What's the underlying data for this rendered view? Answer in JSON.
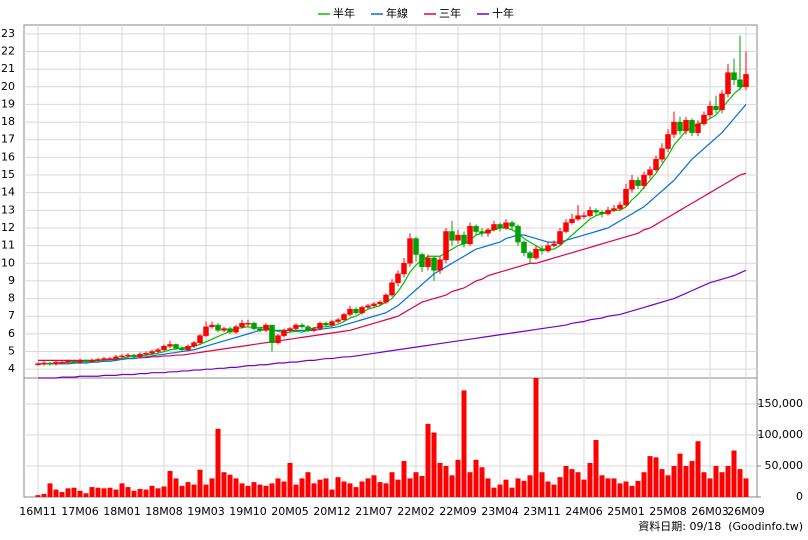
{
  "chart_data": {
    "type": "candlestick",
    "categories": [
      "16M11",
      null,
      null,
      null,
      null,
      null,
      null,
      "17M06",
      null,
      null,
      null,
      null,
      null,
      null,
      "18M01",
      null,
      null,
      null,
      null,
      null,
      null,
      "18M08",
      null,
      null,
      null,
      null,
      null,
      null,
      "19M03",
      null,
      null,
      null,
      null,
      null,
      null,
      "19M10",
      null,
      null,
      null,
      null,
      null,
      null,
      "20M05",
      null,
      null,
      null,
      null,
      null,
      null,
      "20M12",
      null,
      null,
      null,
      null,
      null,
      null,
      "21M07",
      null,
      null,
      null,
      null,
      null,
      null,
      "22M02",
      null,
      null,
      null,
      null,
      null,
      null,
      "22M09",
      null,
      null,
      null,
      null,
      null,
      null,
      "23M04",
      null,
      null,
      null,
      null,
      null,
      null,
      "23M11",
      null,
      null,
      null,
      null,
      null,
      null,
      "24M06",
      null,
      null,
      null,
      null,
      null,
      null,
      "25M01",
      null,
      null,
      null,
      null,
      null,
      null,
      "25M08",
      null,
      null,
      null,
      null,
      null,
      null,
      "26M03",
      null,
      null,
      null,
      null,
      null,
      "26M09"
    ],
    "open": [
      4.25,
      4.3,
      4.35,
      4.3,
      4.4,
      4.4,
      4.45,
      4.4,
      4.5,
      4.45,
      4.5,
      4.55,
      4.6,
      4.6,
      4.7,
      4.75,
      4.8,
      4.7,
      4.85,
      4.9,
      5.0,
      5.1,
      5.3,
      5.4,
      5.2,
      5.1,
      5.3,
      5.5,
      5.9,
      6.4,
      6.5,
      6.2,
      6.3,
      6.1,
      6.4,
      6.6,
      6.6,
      6.3,
      6.2,
      6.5,
      5.5,
      5.9,
      6.2,
      6.3,
      6.5,
      6.4,
      6.2,
      6.3,
      6.6,
      6.5,
      6.7,
      6.8,
      7.1,
      7.4,
      7.2,
      7.5,
      7.6,
      7.7,
      7.8,
      8.2,
      8.9,
      9.4,
      10.0,
      11.4,
      10.5,
      9.8,
      10.3,
      9.6,
      10.2,
      11.8,
      11.3,
      11.6,
      11.1,
      12.1,
      11.8,
      11.7,
      11.9,
      12.2,
      12.0,
      12.3,
      12.1,
      11.2,
      10.6,
      10.3,
      10.8,
      10.7,
      11.0,
      11.1,
      11.8,
      12.3,
      12.5,
      12.7,
      12.7,
      13.0,
      12.9,
      12.8,
      13.0,
      13.1,
      13.3,
      14.2,
      14.7,
      14.4,
      15.0,
      15.3,
      15.9,
      16.5,
      17.3,
      18.0,
      17.5,
      18.1,
      17.4,
      17.9,
      18.4,
      18.9,
      18.7,
      19.6,
      20.8,
      20.4,
      20.0
    ],
    "high": [
      4.4,
      4.45,
      4.4,
      4.5,
      4.5,
      4.55,
      4.5,
      4.6,
      4.55,
      4.6,
      4.65,
      4.7,
      4.7,
      4.8,
      4.85,
      4.9,
      4.85,
      4.95,
      5.0,
      5.1,
      5.2,
      5.4,
      5.6,
      5.45,
      5.3,
      5.4,
      5.6,
      6.0,
      6.7,
      6.7,
      6.6,
      6.4,
      6.4,
      6.5,
      6.8,
      6.8,
      6.7,
      6.4,
      6.6,
      6.5,
      6.0,
      6.3,
      6.4,
      6.6,
      6.6,
      6.5,
      6.4,
      6.7,
      6.7,
      6.8,
      6.9,
      7.2,
      7.6,
      7.5,
      7.6,
      7.7,
      7.8,
      7.9,
      8.3,
      9.1,
      9.6,
      10.3,
      11.7,
      11.5,
      10.6,
      10.5,
      10.4,
      10.4,
      12.0,
      12.4,
      11.9,
      11.8,
      12.3,
      12.2,
      12.0,
      12.0,
      12.4,
      12.3,
      12.5,
      12.4,
      12.2,
      11.3,
      10.7,
      11.0,
      11.0,
      11.2,
      11.3,
      12.0,
      12.5,
      12.8,
      13.3,
      12.9,
      13.2,
      13.1,
      13.0,
      13.2,
      13.3,
      13.5,
      14.5,
      15.0,
      14.9,
      15.2,
      15.5,
      16.1,
      16.8,
      17.6,
      18.6,
      18.3,
      18.3,
      18.2,
      18.1,
      18.6,
      19.2,
      19.5,
      19.8,
      21.3,
      21.6,
      22.9,
      22.0
    ],
    "low": [
      4.2,
      4.2,
      4.2,
      4.2,
      4.3,
      4.3,
      4.3,
      4.3,
      4.35,
      4.35,
      4.4,
      4.45,
      4.5,
      4.5,
      4.6,
      4.65,
      4.6,
      4.6,
      4.75,
      4.8,
      4.9,
      5.0,
      5.2,
      5.1,
      5.0,
      5.0,
      5.2,
      5.4,
      5.8,
      6.3,
      6.1,
      6.1,
      6.0,
      6.0,
      6.3,
      6.4,
      6.2,
      6.1,
      6.1,
      5.0,
      5.4,
      5.8,
      6.1,
      6.2,
      6.3,
      6.1,
      6.1,
      6.2,
      6.4,
      6.4,
      6.6,
      6.7,
      7.0,
      7.1,
      7.1,
      7.4,
      7.5,
      7.6,
      7.7,
      8.1,
      8.7,
      9.2,
      9.8,
      10.1,
      9.5,
      9.6,
      9.0,
      9.4,
      10.0,
      11.0,
      11.1,
      10.9,
      11.0,
      11.6,
      11.5,
      11.5,
      11.8,
      11.8,
      11.9,
      11.9,
      11.0,
      10.4,
      10.0,
      10.2,
      10.5,
      10.6,
      10.9,
      11.0,
      11.7,
      12.2,
      12.4,
      12.5,
      12.6,
      12.7,
      12.6,
      12.7,
      12.9,
      13.0,
      13.2,
      14.0,
      14.2,
      14.2,
      14.8,
      15.2,
      15.7,
      16.3,
      17.1,
      17.3,
      17.3,
      17.2,
      17.2,
      17.8,
      18.2,
      18.5,
      18.5,
      19.4,
      20.1,
      19.8,
      19.8
    ],
    "close": [
      4.3,
      4.35,
      4.3,
      4.4,
      4.4,
      4.45,
      4.4,
      4.5,
      4.45,
      4.5,
      4.55,
      4.6,
      4.6,
      4.7,
      4.75,
      4.8,
      4.7,
      4.85,
      4.9,
      5.0,
      5.1,
      5.3,
      5.4,
      5.2,
      5.1,
      5.3,
      5.5,
      5.9,
      6.4,
      6.5,
      6.2,
      6.3,
      6.1,
      6.4,
      6.6,
      6.6,
      6.3,
      6.2,
      6.5,
      5.5,
      5.9,
      6.2,
      6.3,
      6.5,
      6.4,
      6.2,
      6.3,
      6.6,
      6.5,
      6.7,
      6.8,
      7.1,
      7.4,
      7.2,
      7.5,
      7.6,
      7.7,
      7.8,
      8.2,
      8.9,
      9.4,
      10.0,
      11.4,
      10.5,
      9.8,
      10.3,
      9.6,
      10.2,
      11.8,
      11.3,
      11.6,
      11.1,
      12.1,
      11.8,
      11.7,
      11.9,
      12.2,
      12.0,
      12.3,
      12.1,
      11.2,
      10.6,
      10.3,
      10.8,
      10.7,
      11.0,
      11.1,
      11.8,
      12.3,
      12.5,
      12.7,
      12.7,
      13.0,
      12.9,
      12.8,
      13.0,
      13.1,
      13.3,
      14.2,
      14.7,
      14.4,
      15.0,
      15.3,
      15.9,
      16.5,
      17.3,
      18.0,
      17.5,
      18.1,
      17.4,
      17.9,
      18.4,
      18.9,
      18.7,
      19.6,
      20.8,
      20.4,
      20.0,
      20.7
    ],
    "up_color": "#ff0000",
    "down_color": "#00a000",
    "volume": [
      3000,
      5000,
      22000,
      12000,
      8000,
      14000,
      15000,
      10000,
      6000,
      16000,
      15000,
      14000,
      15000,
      12000,
      22000,
      16000,
      10000,
      13000,
      12000,
      18000,
      14000,
      17000,
      42000,
      30000,
      18000,
      24000,
      20000,
      44000,
      20000,
      30000,
      110000,
      40000,
      36000,
      30000,
      22000,
      18000,
      24000,
      20000,
      18000,
      22000,
      30000,
      25000,
      55000,
      20000,
      30000,
      40000,
      22000,
      28000,
      30000,
      12000,
      32000,
      25000,
      22000,
      16000,
      25000,
      30000,
      35000,
      24000,
      22000,
      40000,
      28000,
      58000,
      30000,
      40000,
      34000,
      118000,
      104000,
      55000,
      50000,
      35000,
      60000,
      172000,
      40000,
      60000,
      48000,
      30000,
      15000,
      20000,
      28000,
      15000,
      30000,
      26000,
      35000,
      192000,
      40000,
      25000,
      20000,
      32000,
      50000,
      45000,
      40000,
      28000,
      55000,
      92000,
      35000,
      30000,
      30000,
      22000,
      25000,
      18000,
      26000,
      40000,
      66000,
      64000,
      45000,
      35000,
      50000,
      70000,
      50000,
      58000,
      90000,
      40000,
      30000,
      50000,
      40000,
      50000,
      75000,
      45000,
      30000
    ],
    "volume_color": "#ff0000",
    "series": [
      {
        "name": "半年",
        "color": "#00c000",
        "values": [
          4.3,
          4.3,
          4.3,
          4.3,
          4.35,
          4.4,
          4.4,
          4.4,
          4.45,
          4.45,
          4.5,
          4.5,
          4.55,
          4.6,
          4.6,
          4.7,
          4.7,
          4.75,
          4.8,
          4.85,
          4.9,
          5.0,
          5.1,
          5.15,
          5.2,
          5.25,
          5.3,
          5.4,
          5.55,
          5.7,
          5.85,
          6.0,
          6.15,
          6.3,
          6.35,
          6.4,
          6.35,
          6.35,
          6.4,
          6.2,
          6.15,
          6.05,
          6.1,
          6.15,
          6.1,
          6.2,
          6.35,
          6.4,
          6.4,
          6.45,
          6.55,
          6.7,
          6.9,
          7.0,
          7.2,
          7.4,
          7.5,
          7.6,
          7.8,
          8.0,
          8.4,
          8.9,
          9.5,
          9.9,
          10.2,
          10.4,
          10.4,
          10.4,
          10.6,
          10.8,
          11.0,
          11.1,
          11.3,
          11.6,
          11.7,
          11.8,
          11.9,
          12.0,
          12.0,
          11.9,
          11.7,
          11.4,
          11.2,
          11.0,
          10.8,
          10.8,
          10.8,
          11.0,
          11.3,
          11.6,
          11.9,
          12.2,
          12.5,
          12.7,
          12.8,
          12.9,
          13.0,
          13.0,
          13.2,
          13.6,
          13.9,
          14.3,
          14.7,
          15.1,
          15.6,
          16.1,
          16.7,
          17.1,
          17.5,
          17.7,
          17.9,
          18.0,
          18.2,
          18.4,
          18.8,
          19.2,
          19.6,
          19.9,
          20.2
        ]
      },
      {
        "name": "年線",
        "color": "#0070e0",
        "values": [
          4.3,
          4.3,
          4.3,
          4.3,
          4.3,
          4.3,
          4.35,
          4.35,
          4.35,
          4.4,
          4.4,
          4.45,
          4.45,
          4.5,
          4.55,
          4.6,
          4.6,
          4.65,
          4.7,
          4.75,
          4.8,
          4.85,
          4.9,
          4.95,
          5.0,
          5.05,
          5.1,
          5.2,
          5.3,
          5.4,
          5.5,
          5.6,
          5.7,
          5.8,
          5.9,
          6.0,
          6.1,
          6.2,
          6.25,
          6.2,
          6.2,
          6.2,
          6.2,
          6.2,
          6.2,
          6.2,
          6.2,
          6.25,
          6.3,
          6.35,
          6.4,
          6.5,
          6.6,
          6.7,
          6.8,
          6.9,
          7.0,
          7.1,
          7.2,
          7.4,
          7.6,
          7.9,
          8.2,
          8.5,
          8.8,
          9.1,
          9.4,
          9.6,
          9.8,
          10.0,
          10.2,
          10.4,
          10.6,
          10.8,
          10.9,
          11.0,
          11.1,
          11.2,
          11.4,
          11.5,
          11.6,
          11.6,
          11.5,
          11.4,
          11.3,
          11.2,
          11.2,
          11.2,
          11.3,
          11.4,
          11.5,
          11.6,
          11.7,
          11.8,
          11.9,
          12.0,
          12.2,
          12.4,
          12.6,
          12.8,
          13.0,
          13.2,
          13.5,
          13.8,
          14.1,
          14.4,
          14.7,
          15.1,
          15.5,
          15.9,
          16.2,
          16.5,
          16.8,
          17.1,
          17.4,
          17.8,
          18.2,
          18.6,
          19.0
        ]
      },
      {
        "name": "三年",
        "color": "#e0004a",
        "values": [
          4.5,
          4.5,
          4.5,
          4.5,
          4.5,
          4.5,
          4.5,
          4.5,
          4.5,
          4.5,
          4.5,
          4.5,
          4.55,
          4.55,
          4.6,
          4.6,
          4.6,
          4.65,
          4.65,
          4.7,
          4.7,
          4.75,
          4.75,
          4.8,
          4.8,
          4.85,
          4.9,
          4.95,
          5.0,
          5.05,
          5.1,
          5.15,
          5.2,
          5.25,
          5.3,
          5.35,
          5.4,
          5.45,
          5.5,
          5.55,
          5.6,
          5.65,
          5.7,
          5.75,
          5.8,
          5.85,
          5.9,
          5.95,
          6.0,
          6.05,
          6.1,
          6.15,
          6.2,
          6.3,
          6.4,
          6.5,
          6.6,
          6.7,
          6.8,
          6.9,
          7.0,
          7.2,
          7.4,
          7.6,
          7.8,
          7.9,
          8.0,
          8.1,
          8.2,
          8.4,
          8.5,
          8.6,
          8.8,
          9.0,
          9.1,
          9.3,
          9.4,
          9.5,
          9.6,
          9.7,
          9.8,
          9.9,
          10.0,
          10.0,
          10.1,
          10.2,
          10.3,
          10.4,
          10.5,
          10.6,
          10.7,
          10.8,
          10.9,
          11.0,
          11.1,
          11.2,
          11.3,
          11.4,
          11.5,
          11.6,
          11.7,
          11.9,
          12.0,
          12.2,
          12.4,
          12.6,
          12.8,
          13.0,
          13.2,
          13.4,
          13.6,
          13.8,
          14.0,
          14.2,
          14.4,
          14.6,
          14.8,
          15.0,
          15.1
        ]
      },
      {
        "name": "十年",
        "color": "#7a00c0",
        "values": [
          3.5,
          3.5,
          3.5,
          3.5,
          3.55,
          3.55,
          3.55,
          3.6,
          3.6,
          3.6,
          3.6,
          3.65,
          3.65,
          3.65,
          3.7,
          3.7,
          3.7,
          3.75,
          3.75,
          3.8,
          3.8,
          3.8,
          3.85,
          3.85,
          3.9,
          3.9,
          3.95,
          3.95,
          4.0,
          4.0,
          4.05,
          4.05,
          4.1,
          4.1,
          4.15,
          4.2,
          4.2,
          4.25,
          4.25,
          4.3,
          4.35,
          4.35,
          4.4,
          4.4,
          4.45,
          4.5,
          4.5,
          4.55,
          4.6,
          4.6,
          4.65,
          4.7,
          4.7,
          4.75,
          4.8,
          4.85,
          4.9,
          4.95,
          5.0,
          5.05,
          5.1,
          5.15,
          5.2,
          5.25,
          5.3,
          5.35,
          5.4,
          5.45,
          5.5,
          5.55,
          5.6,
          5.65,
          5.7,
          5.75,
          5.8,
          5.85,
          5.9,
          5.95,
          6.0,
          6.05,
          6.1,
          6.15,
          6.2,
          6.25,
          6.3,
          6.35,
          6.4,
          6.45,
          6.5,
          6.6,
          6.65,
          6.7,
          6.8,
          6.85,
          6.9,
          7.0,
          7.05,
          7.1,
          7.2,
          7.3,
          7.4,
          7.5,
          7.6,
          7.7,
          7.8,
          7.9,
          8.0,
          8.15,
          8.3,
          8.45,
          8.6,
          8.75,
          8.9,
          9.0,
          9.1,
          9.2,
          9.3,
          9.45,
          9.6
        ]
      }
    ],
    "ylim": [
      3.5,
      23.5
    ],
    "yticks": [
      4,
      5,
      6,
      7,
      8,
      9,
      10,
      11,
      12,
      13,
      14,
      15,
      16,
      17,
      18,
      19,
      20,
      21,
      22,
      23
    ],
    "y2lim": [
      0,
      192000
    ],
    "y2ticks": [
      0,
      {
        "value": 50000,
        "label": "50,000"
      },
      {
        "value": 100000,
        "label": "100,000"
      },
      {
        "value": 150000,
        "label": "150,000"
      }
    ],
    "grid": true,
    "legend": "top",
    "source": "資料日期: 09/18  (Goodinfo.tw)"
  }
}
